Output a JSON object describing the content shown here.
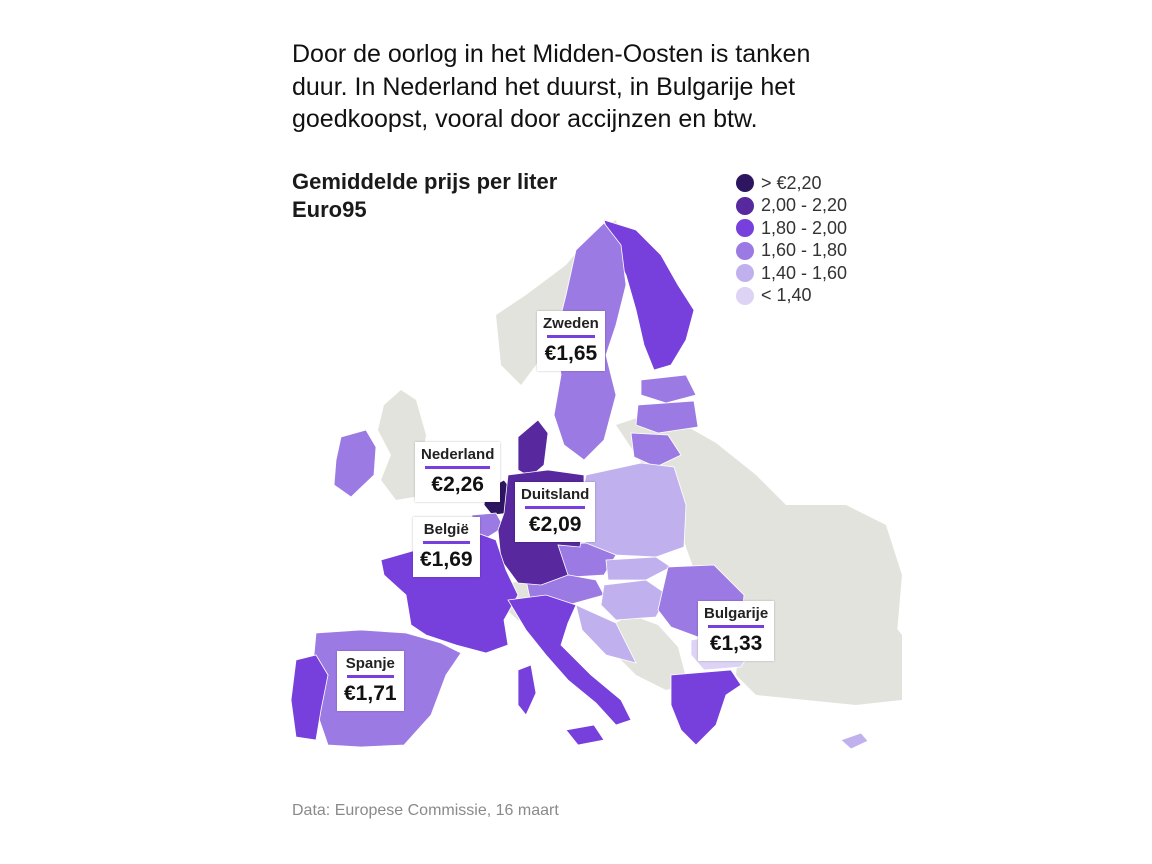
{
  "headline": "Door de oorlog in het Midden-Oosten is tanken duur. In Nederland het duurst, in Bulgarije het goedkoopst, vooral door accijnzen en btw.",
  "map_title": "Gemiddelde prijs per liter Euro95",
  "legend": [
    {
      "label": "> €2,20",
      "color": "#2e1560"
    },
    {
      "label": "2,00 - 2,20",
      "color": "#57289e"
    },
    {
      "label": "1,80 - 2,00",
      "color": "#773fdc"
    },
    {
      "label": "1,60 - 1,80",
      "color": "#9c7ae4"
    },
    {
      "label": "1,40 - 1,60",
      "color": "#c1b0ee"
    },
    {
      "label": "< 1,40",
      "color": "#dcd3f5"
    }
  ],
  "colors": {
    "non_eu_land": "#e3e3de",
    "accent": "#773fdc"
  },
  "callouts": [
    {
      "country": "Zweden",
      "price": "€1,65"
    },
    {
      "country": "Nederland",
      "price": "€2,26"
    },
    {
      "country": "Duitsland",
      "price": "€2,09"
    },
    {
      "country": "België",
      "price": "€1,69"
    },
    {
      "country": "Bulgarije",
      "price": "€1,33"
    },
    {
      "country": "Spanje",
      "price": "€1,71"
    }
  ],
  "source": "Data: Europese Commissie, 16 maart"
}
